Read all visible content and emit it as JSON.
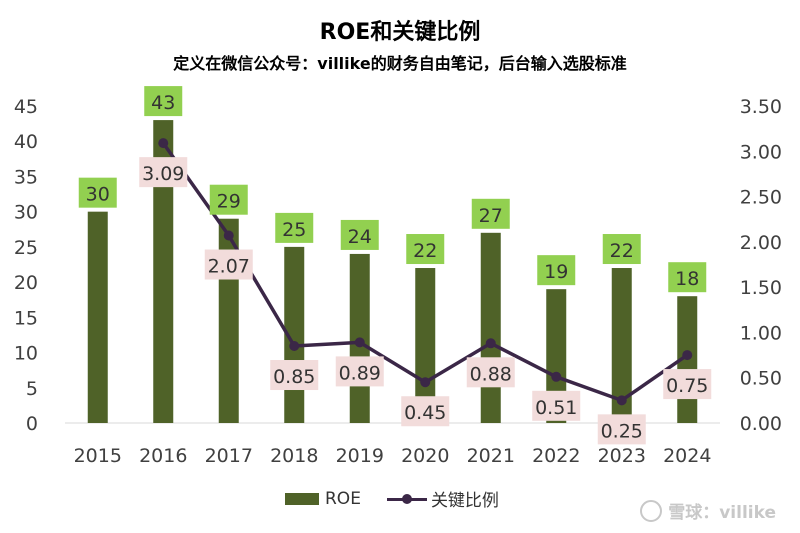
{
  "chart_data": {
    "type": "bar+line",
    "title": "ROE和关键比例",
    "subtitle": "定义在微信公众号：villike的财务自由笔记，后台输入选股标准",
    "categories": [
      "2015",
      "2016",
      "2017",
      "2018",
      "2019",
      "2020",
      "2021",
      "2022",
      "2023",
      "2024"
    ],
    "series": [
      {
        "name": "ROE",
        "type": "bar",
        "axis": "left",
        "color": "#4f6228",
        "values": [
          30,
          43,
          29,
          25,
          24,
          22,
          27,
          19,
          22,
          18
        ]
      },
      {
        "name": "关键比例",
        "type": "line",
        "axis": "right",
        "color": "#3b2747",
        "values": [
          3.09,
          2.07,
          0.85,
          0.89,
          0.45,
          0.88,
          0.51,
          0.25,
          0.75
        ],
        "x": [
          "2016",
          "2017",
          "2018",
          "2019",
          "2020",
          "2021",
          "2022",
          "2023",
          "2024"
        ]
      }
    ],
    "y_left": {
      "min": 0,
      "max": 45,
      "ticks": [
        "0",
        "5",
        "10",
        "15",
        "20",
        "25",
        "30",
        "35",
        "40",
        "45"
      ]
    },
    "y_right": {
      "min": 0,
      "max": 3.5,
      "ticks": [
        "0.00",
        "0.50",
        "1.00",
        "1.50",
        "2.00",
        "2.50",
        "3.00",
        "3.50"
      ]
    },
    "bar_label_color": "#92d050",
    "line_label_color": "#f2dcdb",
    "grid": false,
    "legend_position": "bottom"
  },
  "legend": {
    "items": [
      "ROE",
      "关键比例"
    ]
  },
  "watermark": {
    "text": "雪球：villike"
  }
}
